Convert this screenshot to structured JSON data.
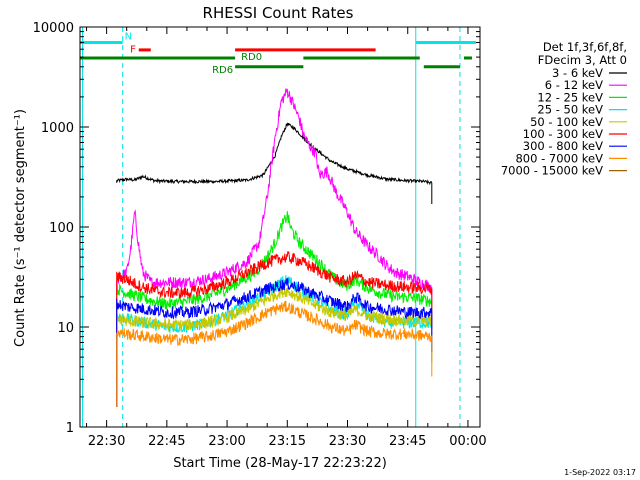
{
  "chart_data": {
    "type": "line",
    "title": "RHESSI Count Rates",
    "xlabel": "Start Time (28-May-17 22:23:22)",
    "ylabel": "Count Rate (s⁻¹ detector segment⁻¹)",
    "y_scale": "log",
    "ylim": [
      1,
      10000
    ],
    "xlim_minutes_after_2220": [
      3.37,
      103
    ],
    "x_ticks": [
      {
        "label": "22:30",
        "minute": 10
      },
      {
        "label": "22:45",
        "minute": 25
      },
      {
        "label": "23:00",
        "minute": 40
      },
      {
        "label": "23:15",
        "minute": 55
      },
      {
        "label": "23:30",
        "minute": 70
      },
      {
        "label": "23:45",
        "minute": 85
      },
      {
        "label": "00:00",
        "minute": 100
      }
    ],
    "y_ticks": [
      {
        "label": "1",
        "value": 1
      },
      {
        "label": "10",
        "value": 10
      },
      {
        "label": "100",
        "value": 100
      },
      {
        "label": "1000",
        "value": 1000
      },
      {
        "label": "10000",
        "value": 10000
      }
    ],
    "legend_header": [
      "Det 1f,3f,6f,8f,",
      "FDecim 3, Att 0"
    ],
    "legend_position": "right",
    "series": [
      {
        "name": "3 - 6 keV",
        "color": "#000000",
        "x": [
          12.5,
          15,
          17,
          19,
          22,
          27,
          32,
          37,
          42,
          45,
          49,
          52,
          53.5,
          55,
          57,
          59,
          61,
          63,
          66,
          70,
          75,
          80,
          85,
          89,
          91
        ],
        "y": [
          290,
          300,
          295,
          320,
          290,
          285,
          285,
          285,
          290,
          295,
          330,
          520,
          800,
          1080,
          950,
          780,
          650,
          560,
          450,
          380,
          330,
          300,
          290,
          285,
          275
        ]
      },
      {
        "name": "6 - 12 keV",
        "color": "#ff00ff",
        "x": [
          12.5,
          15,
          16,
          17,
          18,
          19,
          21,
          25,
          30,
          35,
          40,
          45,
          48,
          50,
          52,
          53.5,
          55,
          56,
          58,
          59,
          60,
          62,
          63,
          65,
          67,
          70,
          72,
          75,
          78,
          80,
          82,
          85,
          88,
          91
        ],
        "y": [
          30,
          35,
          60,
          140,
          65,
          35,
          28,
          28,
          28,
          30,
          35,
          45,
          70,
          200,
          800,
          1800,
          2300,
          1900,
          1200,
          850,
          700,
          550,
          330,
          360,
          230,
          140,
          90,
          65,
          50,
          40,
          35,
          32,
          28,
          25
        ]
      },
      {
        "name": "12 - 25 keV",
        "color": "#00ee00",
        "x": [
          12.5,
          15,
          18,
          22,
          25,
          30,
          35,
          40,
          44,
          47,
          50,
          52,
          53.5,
          55,
          56,
          58,
          60,
          62,
          64,
          66,
          68,
          70,
          72,
          74,
          78,
          82,
          85,
          88,
          91
        ],
        "y": [
          24,
          22,
          20,
          18,
          17,
          18,
          20,
          24,
          30,
          35,
          50,
          70,
          100,
          130,
          95,
          70,
          58,
          48,
          40,
          32,
          28,
          26,
          30,
          26,
          22,
          20,
          20,
          19,
          18
        ]
      },
      {
        "name": "25 - 50 keV",
        "color": "#00e5e5",
        "x": [
          12.5,
          15,
          20,
          25,
          30,
          35,
          40,
          45,
          50,
          53,
          55,
          58,
          62,
          66,
          70,
          72,
          75,
          80,
          85,
          91
        ],
        "y": [
          13,
          12,
          11,
          10,
          10,
          11,
          13,
          17,
          22,
          27,
          30,
          24,
          19,
          15,
          13,
          18,
          13,
          11,
          11,
          11
        ]
      },
      {
        "name": "50 - 100 keV",
        "color": "#c8c800",
        "x": [
          12.5,
          15,
          20,
          25,
          30,
          35,
          40,
          45,
          50,
          53,
          55,
          58,
          62,
          66,
          70,
          72,
          75,
          80,
          85,
          91
        ],
        "y": [
          12,
          11.5,
          11,
          10.5,
          10.5,
          11,
          12.5,
          15,
          19,
          22,
          23,
          20,
          16.5,
          14,
          13,
          15,
          13,
          12,
          11.5,
          11.5
        ]
      },
      {
        "name": "100 - 300 keV",
        "color": "#ff0000",
        "x": [
          12.5,
          15,
          18,
          22,
          25,
          30,
          35,
          40,
          45,
          50,
          53,
          55,
          58,
          62,
          66,
          70,
          72,
          75,
          80,
          85,
          91
        ],
        "y": [
          32,
          30,
          26,
          23,
          22,
          22,
          24,
          28,
          35,
          44,
          48,
          50,
          46,
          38,
          31,
          28,
          33,
          28,
          26,
          25,
          24
        ]
      },
      {
        "name": "300 - 800 keV",
        "color": "#0000ff",
        "x": [
          12.5,
          15,
          20,
          25,
          30,
          35,
          40,
          45,
          50,
          53,
          55,
          58,
          62,
          66,
          70,
          72,
          75,
          80,
          85,
          91
        ],
        "y": [
          17,
          16,
          15,
          14,
          14,
          15,
          17,
          20,
          24,
          26,
          27,
          25,
          21,
          18,
          16,
          20,
          16,
          15,
          14,
          14
        ]
      },
      {
        "name": "800 - 7000 keV",
        "color": "#ff8c00",
        "x": [
          12.5,
          15,
          20,
          25,
          30,
          35,
          40,
          45,
          50,
          53,
          55,
          58,
          62,
          66,
          70,
          72,
          75,
          80,
          85,
          91
        ],
        "y": [
          9,
          8.5,
          8,
          7.5,
          7.5,
          8,
          9,
          11,
          14,
          15.5,
          16,
          14,
          12,
          10,
          9,
          10.5,
          9,
          8.5,
          8.5,
          8
        ]
      },
      {
        "name": "7000 - 15000 keV",
        "color": "#a06000",
        "x": [],
        "y": []
      }
    ],
    "attenuator_bars": [
      {
        "label": "N",
        "color": "#00e5e5",
        "y_value": 7000,
        "segments": [
          [
            3.37,
            14
          ],
          [
            87,
            102
          ]
        ]
      },
      {
        "label": "F",
        "color": "#ff0000",
        "y_value": 5900,
        "segments": [
          [
            18,
            21
          ],
          [
            42,
            77
          ]
        ]
      },
      {
        "label": "RD0",
        "color": "#008000",
        "y_value": 4900,
        "segments": [
          [
            3.37,
            42
          ],
          [
            59,
            88
          ],
          [
            99,
            101
          ]
        ]
      },
      {
        "label": "RD6",
        "color": "#008000",
        "y_value": 4000,
        "segments": [
          [
            42,
            59
          ],
          [
            89,
            98
          ]
        ]
      }
    ],
    "vertical_lines": [
      {
        "color": "#00e5e5",
        "style": "solid",
        "minute": 4
      },
      {
        "color": "#00e5e5",
        "style": "dashed",
        "minute": 14
      },
      {
        "color": "#00e5e5",
        "style": "solid",
        "minute": 87
      },
      {
        "color": "#00e5e5",
        "style": "dashed",
        "minute": 98
      }
    ]
  },
  "footer": {
    "timestamp": "1-Sep-2022 03:17"
  }
}
